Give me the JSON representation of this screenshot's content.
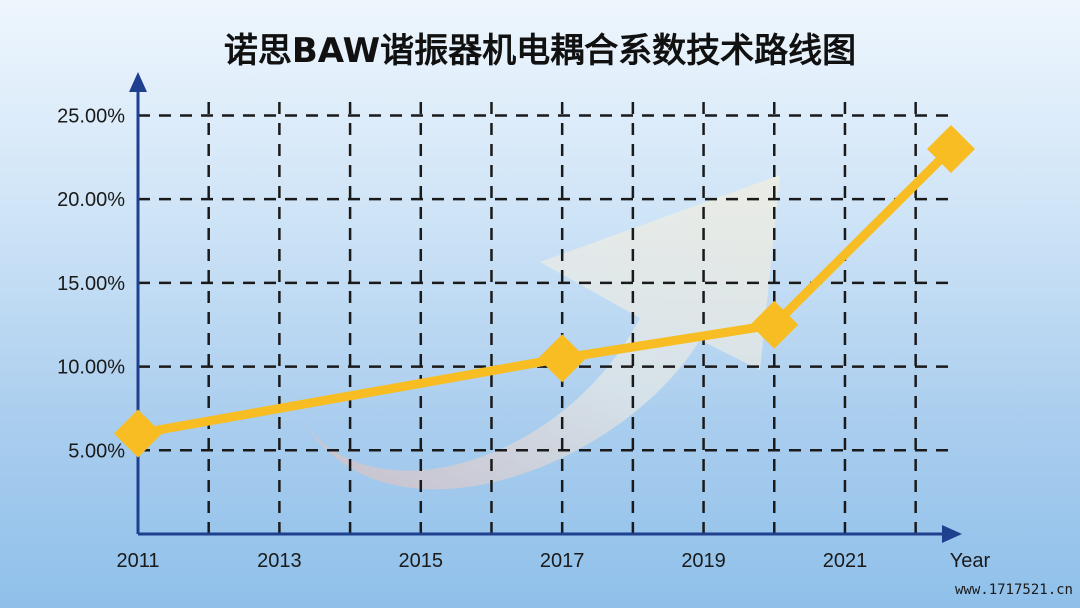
{
  "chart_data": {
    "type": "line",
    "title": "诺思BAW谐振器机电耦合系数技术路线图",
    "xlabel": "Year",
    "ylabel": "",
    "x_ticks": [
      "2011",
      "2013",
      "2015",
      "2017",
      "2019",
      "2021"
    ],
    "y_ticks": [
      "5.00%",
      "10.00%",
      "15.00%",
      "20.00%",
      "25.00%"
    ],
    "xlim": [
      2011,
      2022.5
    ],
    "ylim": [
      0,
      27
    ],
    "grid": true,
    "series": [
      {
        "x": [
          2011,
          2017,
          2020,
          2022.5
        ],
        "values": [
          6.0,
          10.5,
          12.5,
          23.0
        ]
      }
    ],
    "colors": {
      "line": "#f7bd22",
      "grid": "#1a1a1a",
      "axis": "#1f3f8f",
      "arrow": "#f4e6cc"
    }
  },
  "watermark": "www.1717521.cn"
}
